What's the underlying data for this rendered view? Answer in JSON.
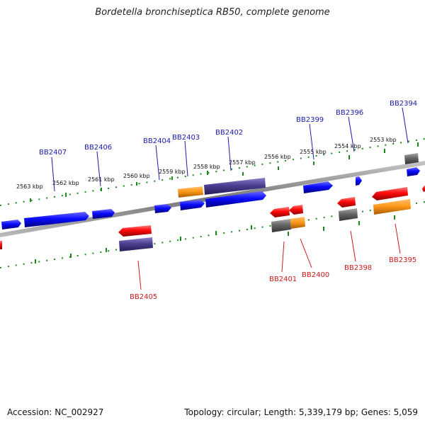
{
  "title": "Bordetella bronchiseptica RB50, complete genome",
  "footer": {
    "accession": "Accession: NC_002927",
    "summary": "Topology: circular; Length: 5,339,179 bp; Genes: 5,059"
  },
  "colors": {
    "forward_gene": "#0a0aff",
    "reverse_gene": "#ff0a0a",
    "orange_feature": "#ff9a1a",
    "purple_feature": "#4a3f90",
    "grey_feature": "#666666",
    "backbone": "#808080",
    "tick_green": "#1a8a1a",
    "label_forward": "#1a1aaa",
    "label_reverse": "#cc1a1a"
  },
  "scale_labels": [
    "2563 kbp",
    "2562 kbp",
    "2561 kbp",
    "2560 kbp",
    "2559 kbp",
    "2558 kbp",
    "2557 kbp",
    "2556 kbp",
    "2555 kbp",
    "2554 kbp",
    "2553 kbp"
  ],
  "forward_gene_labels": [
    "BB2407",
    "BB2406",
    "BB2404",
    "BB2403",
    "BB2402",
    "BB2399",
    "BB2396",
    "BB2394"
  ],
  "reverse_gene_labels": [
    "BB2405",
    "BB2401",
    "BB2400",
    "BB2398",
    "BB2395"
  ]
}
